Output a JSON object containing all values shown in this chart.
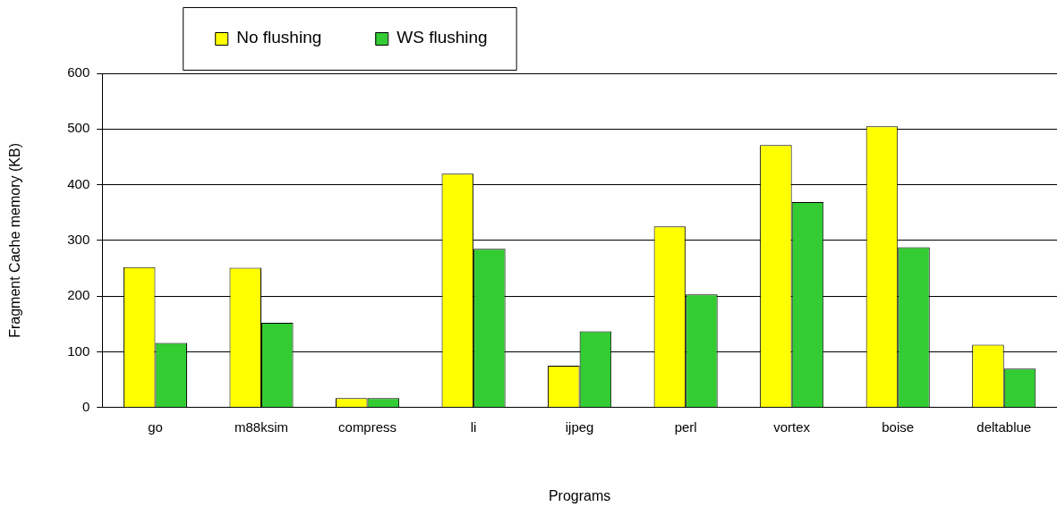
{
  "chart_data": {
    "type": "bar",
    "xlabel": "Programs",
    "ylabel": "Fragment Cache memory (KB)",
    "categories": [
      "go",
      "m88ksim",
      "compress",
      "li",
      "ijpeg",
      "perl",
      "vortex",
      "boise",
      "deltablue"
    ],
    "series": [
      {
        "name": "No flushing",
        "color": "#ffff00",
        "values": [
          252,
          251,
          17,
          420,
          75,
          325,
          471,
          505,
          113
        ]
      },
      {
        "name": "WS flushing",
        "color": "#33cc33",
        "values": [
          116,
          152,
          17,
          285,
          137,
          203,
          369,
          288,
          70
        ]
      }
    ],
    "ylim": [
      0,
      600
    ],
    "yticks": [
      0,
      100,
      200,
      300,
      400,
      500,
      600
    ],
    "grid": "y",
    "legend": "top left"
  }
}
